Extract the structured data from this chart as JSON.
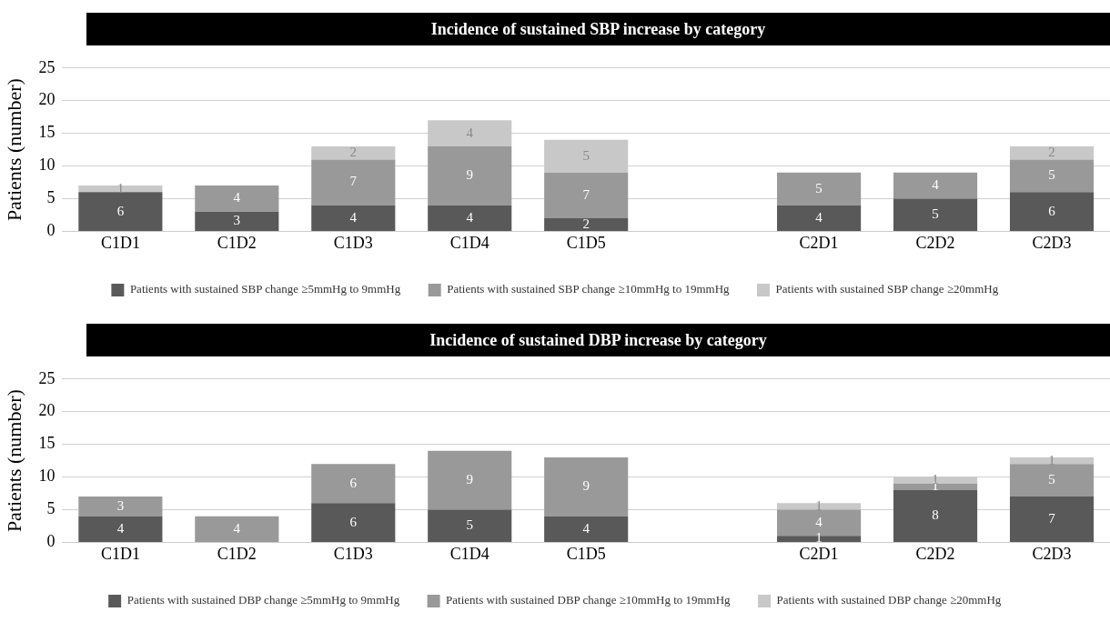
{
  "chart_data": [
    {
      "type": "bar",
      "title": "Incidence of sustained SBP increase by category",
      "ylabel": "Patients (number)",
      "stacked": true,
      "data_labels": true,
      "grid": "y",
      "legend": "bottom",
      "categories": [
        "C1D1",
        "C1D2",
        "C1D3",
        "C1D4",
        "C1D5",
        null,
        "C2D1",
        "C2D2",
        "C2D3"
      ],
      "ylim": [
        0,
        25
      ],
      "yticks": [
        0,
        5,
        10,
        15,
        20,
        25
      ],
      "series": [
        {
          "name": "Patients with sustained SBP change ≥5mmHg to 9mmHg",
          "color": "#595959",
          "values": [
            6,
            3,
            4,
            4,
            2,
            null,
            4,
            5,
            6
          ]
        },
        {
          "name": "Patients with sustained SBP change ≥10mmHg to 19mmHg",
          "color": "#999999",
          "values": [
            null,
            4,
            7,
            9,
            7,
            null,
            5,
            4,
            5
          ]
        },
        {
          "name": "Patients with sustained SBP change ≥20mmHg",
          "color": "#c8c8c8",
          "values": [
            1,
            null,
            2,
            4,
            5,
            null,
            null,
            null,
            2
          ]
        }
      ]
    },
    {
      "type": "bar",
      "title": "Incidence of sustained DBP increase by category",
      "ylabel": "Patients (number)",
      "stacked": true,
      "data_labels": true,
      "grid": "y",
      "legend": "bottom",
      "categories": [
        "C1D1",
        "C1D2",
        "C1D3",
        "C1D4",
        "C1D5",
        null,
        "C2D1",
        "C2D2",
        "C2D3"
      ],
      "ylim": [
        0,
        25
      ],
      "yticks": [
        0,
        5,
        10,
        15,
        20,
        25
      ],
      "series": [
        {
          "name": "Patients with sustained DBP change ≥5mmHg to 9mmHg",
          "color": "#595959",
          "values": [
            4,
            null,
            6,
            5,
            4,
            null,
            1,
            8,
            7
          ]
        },
        {
          "name": "Patients with sustained DBP change ≥10mmHg to 19mmHg",
          "color": "#999999",
          "values": [
            3,
            4,
            6,
            9,
            9,
            null,
            4,
            1,
            5
          ]
        },
        {
          "name": "Patients with sustained DBP change ≥20mmHg",
          "color": "#c8c8c8",
          "values": [
            null,
            null,
            null,
            null,
            null,
            null,
            1,
            1,
            1
          ]
        }
      ]
    }
  ]
}
